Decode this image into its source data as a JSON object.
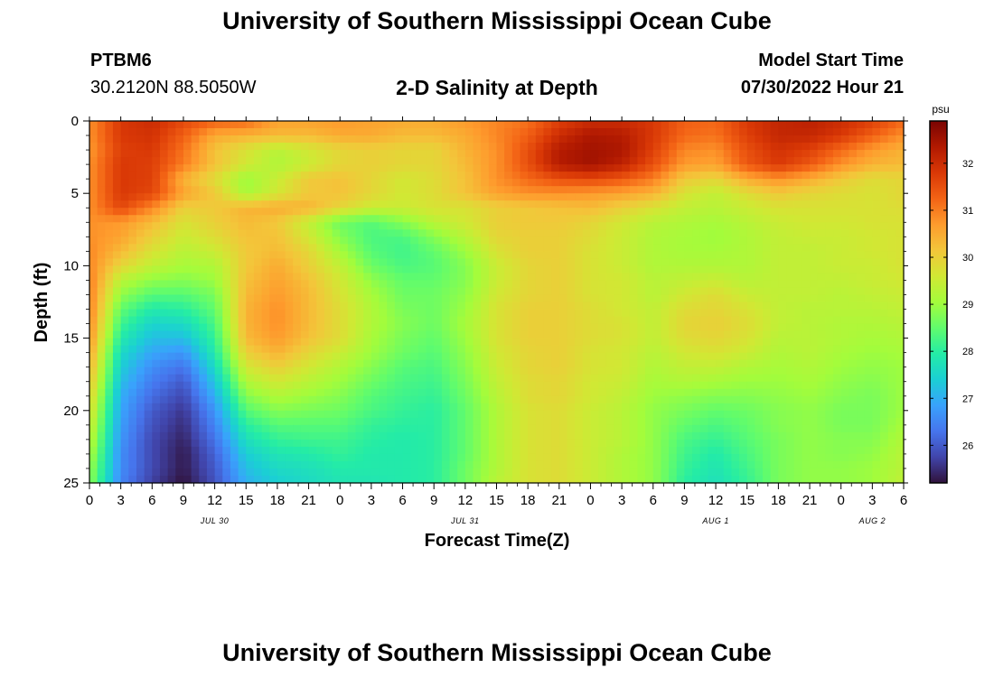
{
  "header": {
    "title": "University of Southern Mississippi Ocean Cube",
    "station_id": "PTBM6",
    "coords": "30.2120N  88.5050W",
    "plot_title": "2-D Salinity at Depth",
    "start_label": "Model Start Time",
    "start_value": "07/30/2022 Hour 21"
  },
  "footer": {
    "title": "University of Southern Mississippi Ocean Cube"
  },
  "colors": {
    "colormap": [
      "#30123b",
      "#4145ab",
      "#4675ed",
      "#39a2fc",
      "#1bcfd4",
      "#24eca6",
      "#61fc6c",
      "#a4fc3b",
      "#d1e834",
      "#f3c63a",
      "#fe9b2d",
      "#f36315",
      "#d93806",
      "#b11901",
      "#7a0402"
    ]
  },
  "chart_data": {
    "type": "heatmap",
    "title": "2-D Salinity at Depth",
    "xlabel": "Forecast Time(Z)",
    "ylabel": "Depth (ft)",
    "colorbar_label": "psu",
    "x_range_hours": [
      0,
      78
    ],
    "x_step_hours": 3,
    "y_range_ft": [
      0,
      25
    ],
    "y_step_ft": 1,
    "x_ticks": [
      {
        "hour": 0,
        "label": "0"
      },
      {
        "hour": 3,
        "label": "3"
      },
      {
        "hour": 6,
        "label": "6"
      },
      {
        "hour": 9,
        "label": "9"
      },
      {
        "hour": 12,
        "label": "12"
      },
      {
        "hour": 15,
        "label": "15"
      },
      {
        "hour": 18,
        "label": "18"
      },
      {
        "hour": 21,
        "label": "21"
      },
      {
        "hour": 24,
        "label": "0"
      },
      {
        "hour": 27,
        "label": "3"
      },
      {
        "hour": 30,
        "label": "6"
      },
      {
        "hour": 33,
        "label": "9"
      },
      {
        "hour": 36,
        "label": "12"
      },
      {
        "hour": 39,
        "label": "15"
      },
      {
        "hour": 42,
        "label": "18"
      },
      {
        "hour": 45,
        "label": "21"
      },
      {
        "hour": 48,
        "label": "0"
      },
      {
        "hour": 51,
        "label": "3"
      },
      {
        "hour": 54,
        "label": "6"
      },
      {
        "hour": 57,
        "label": "9"
      },
      {
        "hour": 60,
        "label": "12"
      },
      {
        "hour": 63,
        "label": "15"
      },
      {
        "hour": 66,
        "label": "18"
      },
      {
        "hour": 69,
        "label": "21"
      },
      {
        "hour": 72,
        "label": "0"
      },
      {
        "hour": 75,
        "label": "3"
      },
      {
        "hour": 78,
        "label": "6"
      }
    ],
    "date_labels": [
      {
        "hour": 12,
        "label": "JUL 30"
      },
      {
        "hour": 36,
        "label": "JUL 31"
      },
      {
        "hour": 60,
        "label": "AUG 1"
      },
      {
        "hour": 75,
        "label": "AUG 2"
      }
    ],
    "y_ticks": [
      0,
      5,
      10,
      15,
      20,
      25
    ],
    "colorbar": {
      "min": 25.2,
      "max": 32.9,
      "ticks": [
        26,
        27,
        28,
        29,
        30,
        31,
        32
      ]
    },
    "salinity_psu": [
      [
        30.8,
        31.8,
        32.0,
        31.6,
        31.3,
        31.2,
        30.6,
        30.6,
        30.7,
        30.6,
        30.5,
        30.5,
        30.7,
        30.9,
        31.1,
        31.7,
        32.0,
        32.0,
        31.8,
        31.3,
        31.2,
        31.8,
        32.1,
        32.2,
        32.0,
        31.7,
        31.2
      ],
      [
        30.8,
        31.8,
        31.9,
        31.3,
        30.5,
        30.4,
        30.3,
        30.3,
        30.5,
        30.5,
        30.3,
        30.3,
        30.5,
        30.9,
        31.3,
        32.0,
        32.4,
        32.3,
        31.8,
        31.2,
        31.1,
        31.7,
        32.1,
        32.1,
        31.8,
        31.3,
        30.8
      ],
      [
        30.7,
        31.7,
        31.8,
        31.1,
        30.2,
        29.7,
        29.3,
        29.6,
        29.9,
        30.0,
        29.9,
        29.9,
        30.4,
        30.8,
        31.5,
        32.3,
        32.5,
        32.4,
        31.7,
        30.9,
        30.8,
        31.5,
        31.9,
        31.7,
        31.2,
        30.7,
        30.4
      ],
      [
        30.8,
        31.8,
        31.7,
        31.0,
        30.2,
        29.6,
        29.2,
        29.5,
        29.9,
        30.0,
        29.9,
        29.9,
        30.3,
        30.8,
        31.5,
        32.3,
        32.5,
        32.2,
        31.5,
        30.7,
        30.6,
        31.4,
        31.8,
        31.4,
        30.8,
        30.4,
        30.3
      ],
      [
        30.8,
        31.8,
        31.7,
        30.4,
        29.8,
        29.0,
        29.5,
        30.1,
        30.2,
        29.9,
        29.6,
        29.8,
        30.2,
        30.8,
        31.2,
        31.5,
        31.6,
        31.4,
        31.0,
        30.1,
        29.9,
        30.5,
        30.8,
        30.5,
        30.1,
        29.8,
        29.9
      ],
      [
        30.8,
        31.8,
        31.6,
        30.6,
        30.1,
        29.1,
        29.6,
        30.1,
        30.2,
        29.9,
        29.6,
        29.8,
        30.2,
        30.6,
        30.8,
        30.8,
        30.7,
        30.6,
        30.4,
        29.7,
        29.4,
        29.8,
        30.1,
        29.9,
        29.8,
        29.7,
        29.9
      ],
      [
        30.8,
        31.6,
        30.9,
        30.0,
        30.1,
        30.4,
        30.5,
        30.4,
        29.9,
        29.5,
        29.5,
        29.7,
        29.7,
        30.0,
        30.1,
        30.2,
        30.3,
        30.0,
        29.7,
        29.4,
        29.3,
        29.5,
        29.7,
        29.7,
        29.7,
        29.7,
        29.8
      ],
      [
        30.8,
        30.7,
        30.3,
        29.7,
        30.0,
        30.3,
        30.1,
        29.4,
        28.6,
        28.4,
        28.8,
        29.3,
        29.6,
        30.0,
        30.1,
        30.1,
        29.9,
        29.6,
        29.3,
        29.2,
        29.1,
        29.3,
        29.5,
        29.6,
        29.6,
        29.7,
        29.7
      ],
      [
        30.8,
        30.6,
        30.0,
        29.5,
        29.8,
        30.2,
        30.2,
        29.6,
        28.8,
        28.3,
        28.3,
        28.8,
        29.3,
        29.9,
        30.0,
        30.0,
        29.8,
        29.5,
        29.2,
        29.1,
        29.0,
        29.2,
        29.4,
        29.5,
        29.5,
        29.6,
        29.7
      ],
      [
        30.9,
        30.3,
        29.7,
        29.3,
        29.5,
        30.1,
        30.3,
        29.9,
        29.1,
        28.4,
        28.2,
        28.5,
        29.0,
        29.7,
        30.0,
        30.0,
        29.7,
        29.5,
        29.2,
        29.1,
        29.1,
        29.2,
        29.4,
        29.4,
        29.5,
        29.6,
        29.7
      ],
      [
        30.9,
        29.9,
        29.4,
        29.1,
        29.2,
        30.1,
        30.5,
        30.0,
        29.4,
        28.6,
        28.3,
        28.4,
        28.8,
        29.5,
        29.9,
        30.0,
        29.7,
        29.5,
        29.2,
        29.2,
        29.2,
        29.2,
        29.4,
        29.4,
        29.5,
        29.5,
        29.7
      ],
      [
        31.0,
        29.3,
        28.9,
        28.8,
        29.0,
        30.2,
        30.6,
        30.2,
        29.6,
        28.9,
        28.5,
        28.5,
        28.8,
        29.5,
        29.9,
        30.0,
        29.7,
        29.6,
        29.3,
        29.4,
        29.5,
        29.3,
        29.4,
        29.4,
        29.4,
        29.5,
        29.6
      ],
      [
        31.0,
        28.9,
        28.4,
        28.4,
        28.7,
        30.3,
        30.7,
        30.3,
        29.7,
        29.1,
        28.6,
        28.6,
        28.9,
        29.6,
        29.9,
        30.0,
        29.7,
        29.6,
        29.3,
        29.6,
        29.8,
        29.5,
        29.4,
        29.4,
        29.3,
        29.4,
        29.5
      ],
      [
        31.0,
        28.5,
        27.9,
        28.0,
        28.5,
        30.4,
        30.8,
        30.3,
        29.8,
        29.2,
        28.7,
        28.6,
        29.0,
        29.7,
        30.0,
        30.0,
        29.8,
        29.6,
        29.4,
        29.8,
        29.9,
        29.7,
        29.4,
        29.3,
        29.3,
        29.3,
        29.4
      ],
      [
        30.9,
        28.2,
        27.5,
        27.6,
        28.3,
        30.4,
        30.8,
        30.3,
        29.8,
        29.2,
        28.8,
        28.6,
        29.1,
        29.7,
        30.0,
        30.0,
        29.8,
        29.7,
        29.4,
        29.9,
        30.0,
        29.8,
        29.4,
        29.3,
        29.2,
        29.2,
        29.3
      ],
      [
        30.8,
        27.9,
        27.2,
        27.2,
        28.1,
        30.3,
        30.7,
        30.2,
        29.8,
        29.1,
        28.7,
        28.5,
        29.0,
        29.7,
        30.0,
        30.0,
        29.8,
        29.7,
        29.4,
        29.8,
        29.9,
        29.7,
        29.3,
        29.3,
        29.2,
        29.1,
        29.2
      ],
      [
        30.6,
        27.6,
        26.9,
        26.7,
        27.9,
        30.0,
        30.4,
        29.9,
        29.5,
        29.0,
        28.6,
        28.4,
        28.9,
        29.6,
        29.9,
        30.0,
        29.7,
        29.6,
        29.3,
        29.6,
        29.7,
        29.5,
        29.2,
        29.3,
        29.1,
        29.0,
        29.1
      ],
      [
        30.4,
        27.4,
        26.6,
        26.3,
        27.6,
        29.6,
        30.0,
        29.6,
        29.2,
        28.8,
        28.4,
        28.3,
        28.8,
        29.5,
        29.9,
        30.0,
        29.7,
        29.6,
        29.2,
        29.4,
        29.4,
        29.2,
        29.1,
        29.2,
        29.0,
        28.9,
        29.0
      ],
      [
        30.2,
        27.2,
        26.4,
        26.0,
        27.3,
        29.2,
        29.6,
        29.3,
        29.0,
        28.6,
        28.3,
        28.2,
        28.7,
        29.4,
        29.8,
        29.9,
        29.6,
        29.5,
        29.1,
        29.2,
        29.1,
        29.0,
        29.0,
        29.1,
        28.9,
        28.8,
        29.0
      ],
      [
        30.0,
        27.0,
        26.2,
        25.8,
        27.0,
        28.8,
        29.2,
        29.0,
        28.8,
        28.4,
        28.2,
        28.1,
        28.6,
        29.3,
        29.8,
        29.9,
        29.6,
        29.4,
        29.0,
        28.9,
        28.8,
        28.8,
        28.9,
        29.0,
        28.8,
        28.7,
        29.0
      ],
      [
        29.8,
        26.9,
        26.0,
        25.6,
        26.7,
        28.4,
        28.8,
        28.7,
        28.6,
        28.3,
        28.1,
        28.0,
        28.5,
        29.2,
        29.7,
        29.8,
        29.5,
        29.3,
        28.9,
        28.7,
        28.5,
        28.6,
        28.8,
        28.9,
        28.7,
        28.7,
        29.0
      ],
      [
        29.6,
        26.8,
        25.9,
        25.5,
        26.5,
        28.0,
        28.4,
        28.4,
        28.4,
        28.1,
        28.0,
        28.0,
        28.5,
        29.2,
        29.7,
        29.8,
        29.5,
        29.3,
        28.9,
        28.5,
        28.3,
        28.5,
        28.8,
        28.9,
        28.7,
        28.7,
        29.1
      ],
      [
        29.4,
        26.7,
        25.8,
        25.4,
        26.3,
        27.7,
        28.1,
        28.2,
        28.2,
        28.0,
        27.9,
        28.0,
        28.5,
        29.2,
        29.7,
        29.8,
        29.5,
        29.3,
        28.9,
        28.3,
        28.1,
        28.4,
        28.7,
        28.9,
        28.8,
        28.8,
        29.2
      ],
      [
        29.2,
        26.6,
        25.8,
        25.3,
        26.1,
        27.4,
        27.8,
        27.9,
        28.1,
        27.9,
        27.9,
        28.0,
        28.5,
        29.2,
        29.7,
        29.8,
        29.5,
        29.2,
        28.9,
        28.2,
        27.9,
        28.3,
        28.7,
        28.9,
        28.8,
        28.9,
        29.3
      ],
      [
        29.0,
        26.6,
        25.8,
        25.3,
        26.0,
        27.2,
        27.6,
        27.7,
        27.9,
        27.9,
        27.9,
        28.0,
        28.6,
        29.2,
        29.7,
        29.8,
        29.5,
        29.2,
        28.9,
        28.1,
        27.8,
        28.2,
        28.7,
        28.9,
        28.9,
        29.0,
        29.3
      ],
      [
        28.9,
        26.5,
        25.7,
        25.2,
        25.9,
        27.0,
        27.4,
        27.6,
        27.8,
        27.8,
        27.9,
        28.0,
        28.6,
        29.3,
        29.7,
        29.8,
        29.5,
        29.2,
        28.9,
        28.0,
        27.7,
        28.1,
        28.7,
        28.9,
        28.9,
        29.0,
        29.4
      ]
    ]
  }
}
